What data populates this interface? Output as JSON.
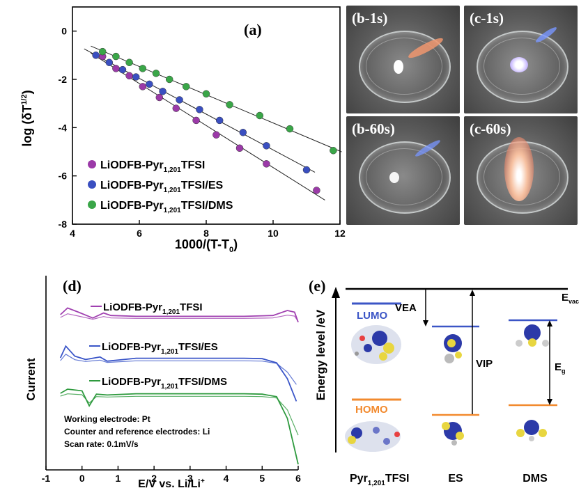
{
  "panel_a": {
    "label": "(a)",
    "ylabel": "log (δT",
    "ylabel_sup": "1/2",
    "ylabel_close": ")",
    "xlabel": "1000/(T-T",
    "xlabel_sub": "0",
    "xlabel_close": ")",
    "xticks": [
      "4",
      "6",
      "8",
      "10",
      "12"
    ],
    "yticks": [
      "0",
      "-2",
      "-4",
      "-6",
      "-8"
    ],
    "legend": [
      {
        "pre": "LiODFB-Pyr",
        "sub": "1,201",
        "post": "TFSI",
        "color": "#9b3aa8"
      },
      {
        "pre": "LiODFB-Pyr",
        "sub": "1,201",
        "post": "TFSI/ES",
        "color": "#3a4fc0"
      },
      {
        "pre": "LiODFB-Pyr",
        "sub": "1,201",
        "post": "TFSI/DMS",
        "color": "#3aa648"
      }
    ]
  },
  "panel_bc": {
    "labels": [
      "(b-1s)",
      "(c-1s)",
      "(b-60s)",
      "(c-60s)"
    ]
  },
  "panel_d": {
    "label": "(d)",
    "ylabel": "Current",
    "xlabel": "E/V vs. Li/Li",
    "xlabel_sup": "+",
    "xticks": [
      "-1",
      "0",
      "1",
      "2",
      "3",
      "4",
      "5",
      "6"
    ],
    "curves": [
      {
        "pre": "LiODFB-Pyr",
        "sub": "1,201",
        "post": "TFSI",
        "color": "#a040b0"
      },
      {
        "pre": "LiODFB-Pyr",
        "sub": "1,201",
        "post": "TFSI/ES",
        "color": "#3a55c8"
      },
      {
        "pre": "LiODFB-Pyr",
        "sub": "1,201",
        "post": "TFSI/DMS",
        "color": "#2e9a3e"
      }
    ],
    "notes": [
      "Working electrode: Pt",
      "Counter and reference electrodes: Li",
      "Scan rate: 0.1mV/s"
    ]
  },
  "panel_e": {
    "label": "(e)",
    "ylabel": "Energy level /eV",
    "evac": "E",
    "evac_sub": "vac",
    "lumo": "LUMO",
    "homo": "HOMO",
    "vea": "VEA",
    "vip": "VIP",
    "eg": "E",
    "eg_sub": "g",
    "molecules": [
      {
        "pre": "Pyr",
        "sub": "1,201",
        "post": "TFSI"
      },
      {
        "pre": "ES",
        "sub": "",
        "post": ""
      },
      {
        "pre": "DMS",
        "sub": "",
        "post": ""
      }
    ],
    "lumo_color": "#3b55c6",
    "homo_color": "#f28a2e"
  },
  "chart_data": [
    {
      "type": "scatter",
      "title": "(a)",
      "xlabel": "1000/(T-T0)",
      "ylabel": "log (δT1/2)",
      "xlim": [
        4,
        12
      ],
      "ylim": [
        -8,
        1
      ],
      "legend_position": "bottom-left",
      "series": [
        {
          "name": "LiODFB-Pyr1,201TFSI",
          "x": [
            4.9,
            5.3,
            5.7,
            6.1,
            6.6,
            7.1,
            7.7,
            8.3,
            9.0,
            9.8,
            11.3
          ],
          "y": [
            -1.05,
            -1.55,
            -1.85,
            -2.3,
            -2.75,
            -3.2,
            -3.7,
            -4.3,
            -4.85,
            -5.5,
            -6.6
          ]
        },
        {
          "name": "LiODFB-Pyr1,201TFSI/ES",
          "x": [
            4.7,
            5.1,
            5.5,
            5.9,
            6.3,
            6.7,
            7.2,
            7.8,
            8.4,
            9.1,
            9.8,
            11.0
          ],
          "y": [
            -1.0,
            -1.3,
            -1.6,
            -1.9,
            -2.2,
            -2.5,
            -2.85,
            -3.25,
            -3.7,
            -4.2,
            -4.75,
            -5.75
          ]
        },
        {
          "name": "LiODFB-Pyr1,201TFSI/DMS",
          "x": [
            4.9,
            5.3,
            5.7,
            6.1,
            6.5,
            6.9,
            7.4,
            8.0,
            8.7,
            9.6,
            10.5,
            11.8
          ],
          "y": [
            -0.85,
            -1.05,
            -1.3,
            -1.55,
            -1.75,
            -2.0,
            -2.3,
            -2.6,
            -3.05,
            -3.5,
            -4.05,
            -4.95
          ]
        }
      ]
    },
    {
      "type": "line",
      "title": "(d)",
      "xlabel": "E/V vs. Li/Li+",
      "ylabel": "Current",
      "xlim": [
        -1,
        6
      ],
      "series": [
        {
          "name": "LiODFB-Pyr1,201TFSI",
          "x": [
            -0.6,
            -0.4,
            -0.1,
            0.3,
            0.6,
            0.8,
            1.5,
            3.0,
            4.5,
            5.3,
            5.7,
            5.9,
            6.0
          ],
          "y": [
            0.0,
            0.8,
            0.3,
            -0.4,
            0.2,
            -0.1,
            -0.2,
            -0.2,
            -0.2,
            -0.1,
            0.5,
            0.3,
            -0.9
          ]
        },
        {
          "name": "LiODFB-Pyr1,201TFSI/ES",
          "x": [
            -0.6,
            -0.45,
            -0.2,
            0.1,
            0.5,
            0.7,
            1.5,
            3.0,
            4.5,
            5.0,
            5.4,
            5.7,
            5.95
          ],
          "y": [
            0.0,
            1.4,
            0.2,
            -0.2,
            0.1,
            -0.4,
            -0.05,
            -0.05,
            -0.05,
            -0.1,
            -0.6,
            -2.5,
            -5.2
          ]
        },
        {
          "name": "LiODFB-Pyr1,201TFSI/DMS",
          "x": [
            -0.6,
            -0.4,
            0.0,
            0.2,
            0.4,
            0.7,
            1.5,
            3.0,
            4.5,
            5.0,
            5.4,
            5.7,
            6.0
          ],
          "y": [
            0.0,
            0.5,
            0.3,
            -1.5,
            -0.1,
            -0.2,
            -0.05,
            -0.05,
            -0.05,
            -0.1,
            -0.4,
            -3.0,
            -8.5
          ]
        }
      ]
    }
  ]
}
